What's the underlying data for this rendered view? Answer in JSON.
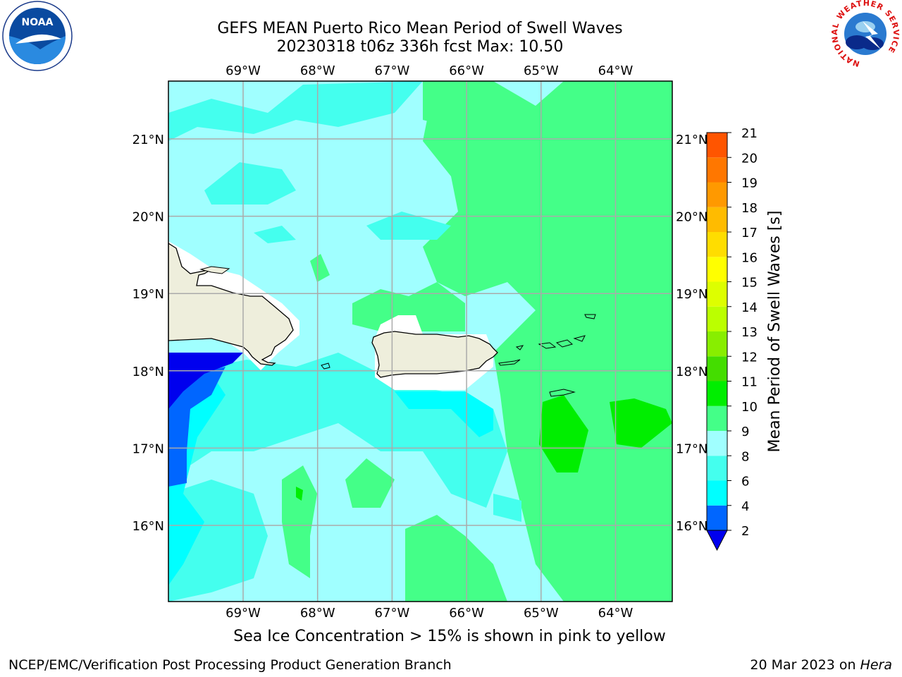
{
  "title": {
    "line1": "GEFS MEAN Puerto Rico Mean Period of Swell Waves",
    "line2": "20230318 t06z 336h fcst   Max: 10.50"
  },
  "map": {
    "lon_labels": [
      "69°W",
      "68°W",
      "67°W",
      "66°W",
      "65°W",
      "64°W"
    ],
    "lat_labels": [
      "21°N",
      "20°N",
      "19°N",
      "18°N",
      "17°N",
      "16°N"
    ]
  },
  "colorbar": {
    "label": "Mean Period of Swell Waves [s]",
    "ticks": [
      "2",
      "4",
      "6",
      "8",
      "9",
      "10",
      "11",
      "12",
      "13",
      "14",
      "15",
      "16",
      "17",
      "18",
      "19",
      "20",
      "21"
    ],
    "colors": [
      "#0066ff",
      "#00ffff",
      "#44ffee",
      "#a0ffff",
      "#44ff88",
      "#00ee00",
      "#44dd00",
      "#88ee00",
      "#bbff00",
      "#ddff00",
      "#ffff00",
      "#ffdd00",
      "#ffbb00",
      "#ff9900",
      "#ff7700",
      "#ff5500",
      "#ff0000"
    ],
    "under_color": "#0000ee"
  },
  "note": "Sea Ice Concentration > 15% is shown in pink to yellow",
  "footer": {
    "left": "NCEP/EMC/Verification Post Processing Product Generation Branch",
    "right_date": "20 Mar 2023 on ",
    "right_machine": "Hera"
  },
  "logos": {
    "left": "NOAA",
    "right_ring": "NATIONAL WEATHER SERVICE"
  }
}
